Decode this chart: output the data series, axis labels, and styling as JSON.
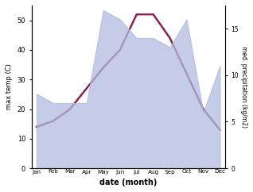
{
  "months": [
    "Jan",
    "Feb",
    "Mar",
    "Apr",
    "May",
    "Jun",
    "Jul",
    "Aug",
    "Sep",
    "Oct",
    "Nov",
    "Dec"
  ],
  "temp_line": [
    14,
    16,
    20,
    27,
    34,
    40,
    52,
    52,
    44,
    32,
    20,
    13
  ],
  "precip_area": [
    8,
    7,
    7,
    7,
    17,
    16,
    14,
    14,
    13,
    16,
    6,
    11
  ],
  "temp_ylim": [
    0,
    55
  ],
  "precip_ylim": [
    0,
    17.5
  ],
  "precip_yticks": [
    0,
    5,
    10,
    15
  ],
  "temp_yticks": [
    0,
    10,
    20,
    30,
    40,
    50
  ],
  "temp_ylabel": "max temp (C)",
  "precip_ylabel": "med. precipitation (kg/m2)",
  "xlabel": "date (month)",
  "line_color": "#8B2252",
  "area_color": "#b0bce0",
  "area_alpha": 0.75,
  "background_color": "#ffffff",
  "figsize": [
    3.18,
    2.42
  ],
  "dpi": 100
}
